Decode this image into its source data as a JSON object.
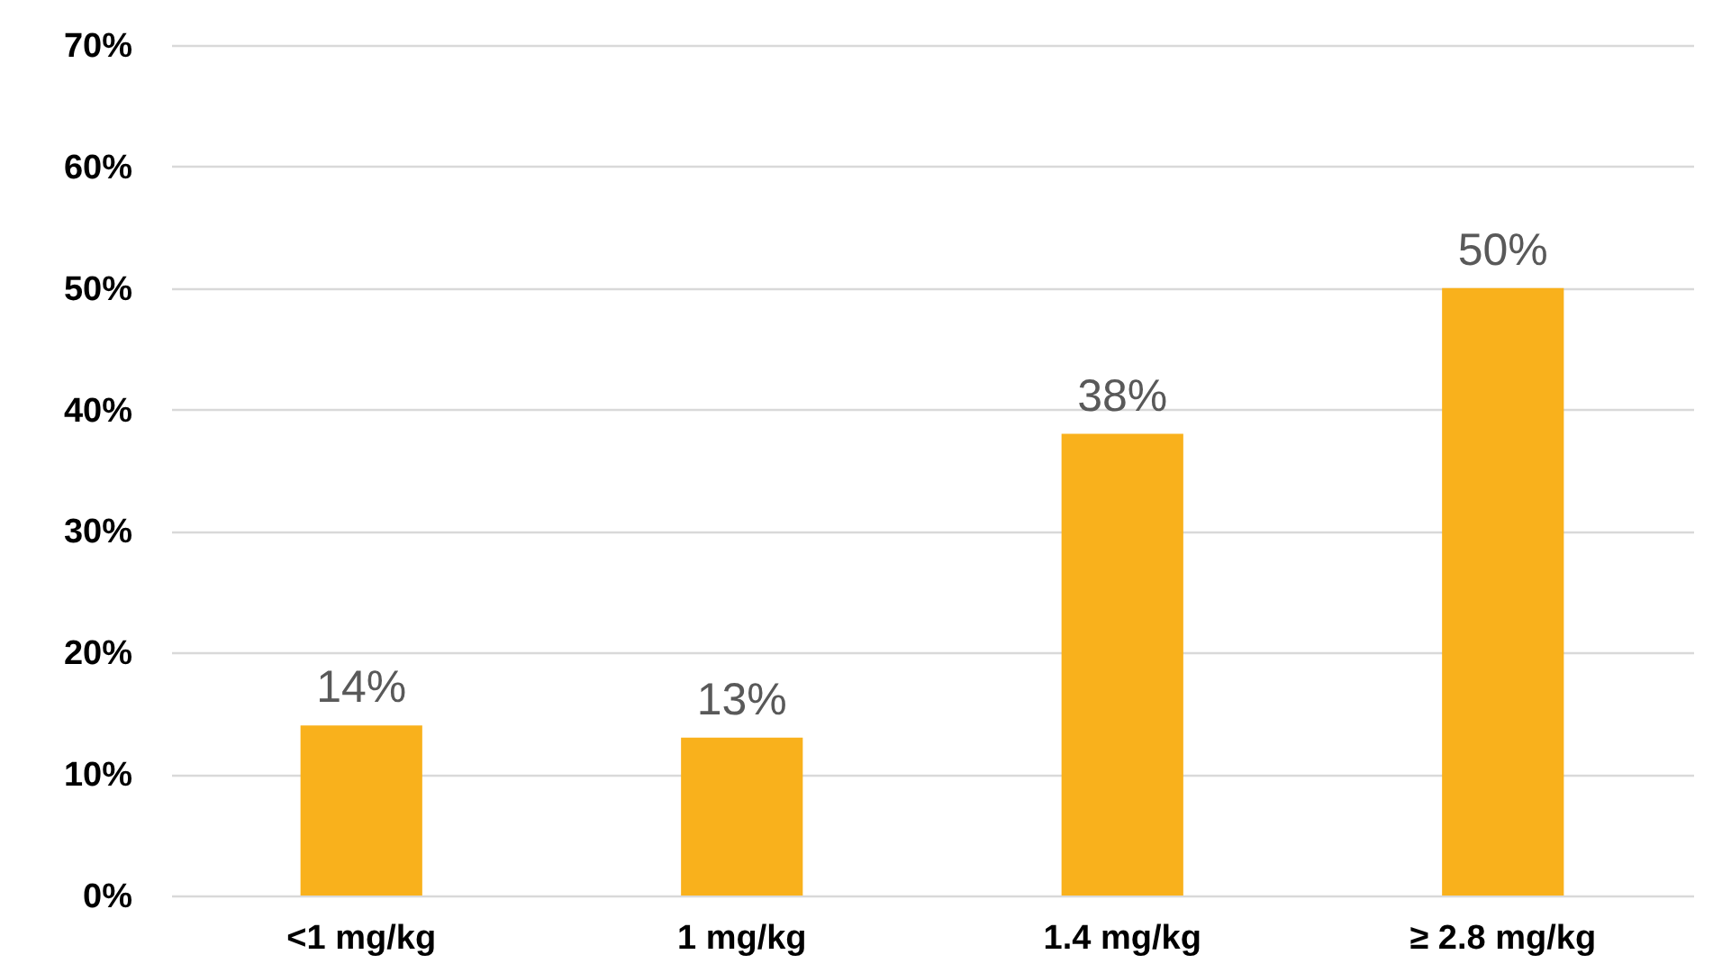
{
  "chart_data": {
    "type": "bar",
    "categories": [
      "<1 mg/kg",
      "1 mg/kg",
      "1.4 mg/kg",
      "≥ 2.8 mg/kg"
    ],
    "values": [
      14,
      13,
      38,
      50
    ],
    "color": "#f9b11c",
    "value_labels": [
      "14%",
      "13%",
      "38%",
      "50%"
    ],
    "ylim": [
      0,
      70
    ],
    "yticks": [
      {
        "value": 0,
        "label": "0%"
      },
      {
        "value": 10,
        "label": "10%"
      },
      {
        "value": 20,
        "label": "20%"
      },
      {
        "value": 30,
        "label": "30%"
      },
      {
        "value": 40,
        "label": "40%"
      },
      {
        "value": 50,
        "label": "50%"
      },
      {
        "value": 60,
        "label": "60%"
      },
      {
        "value": 70,
        "label": "70%"
      }
    ],
    "grid": "y"
  }
}
